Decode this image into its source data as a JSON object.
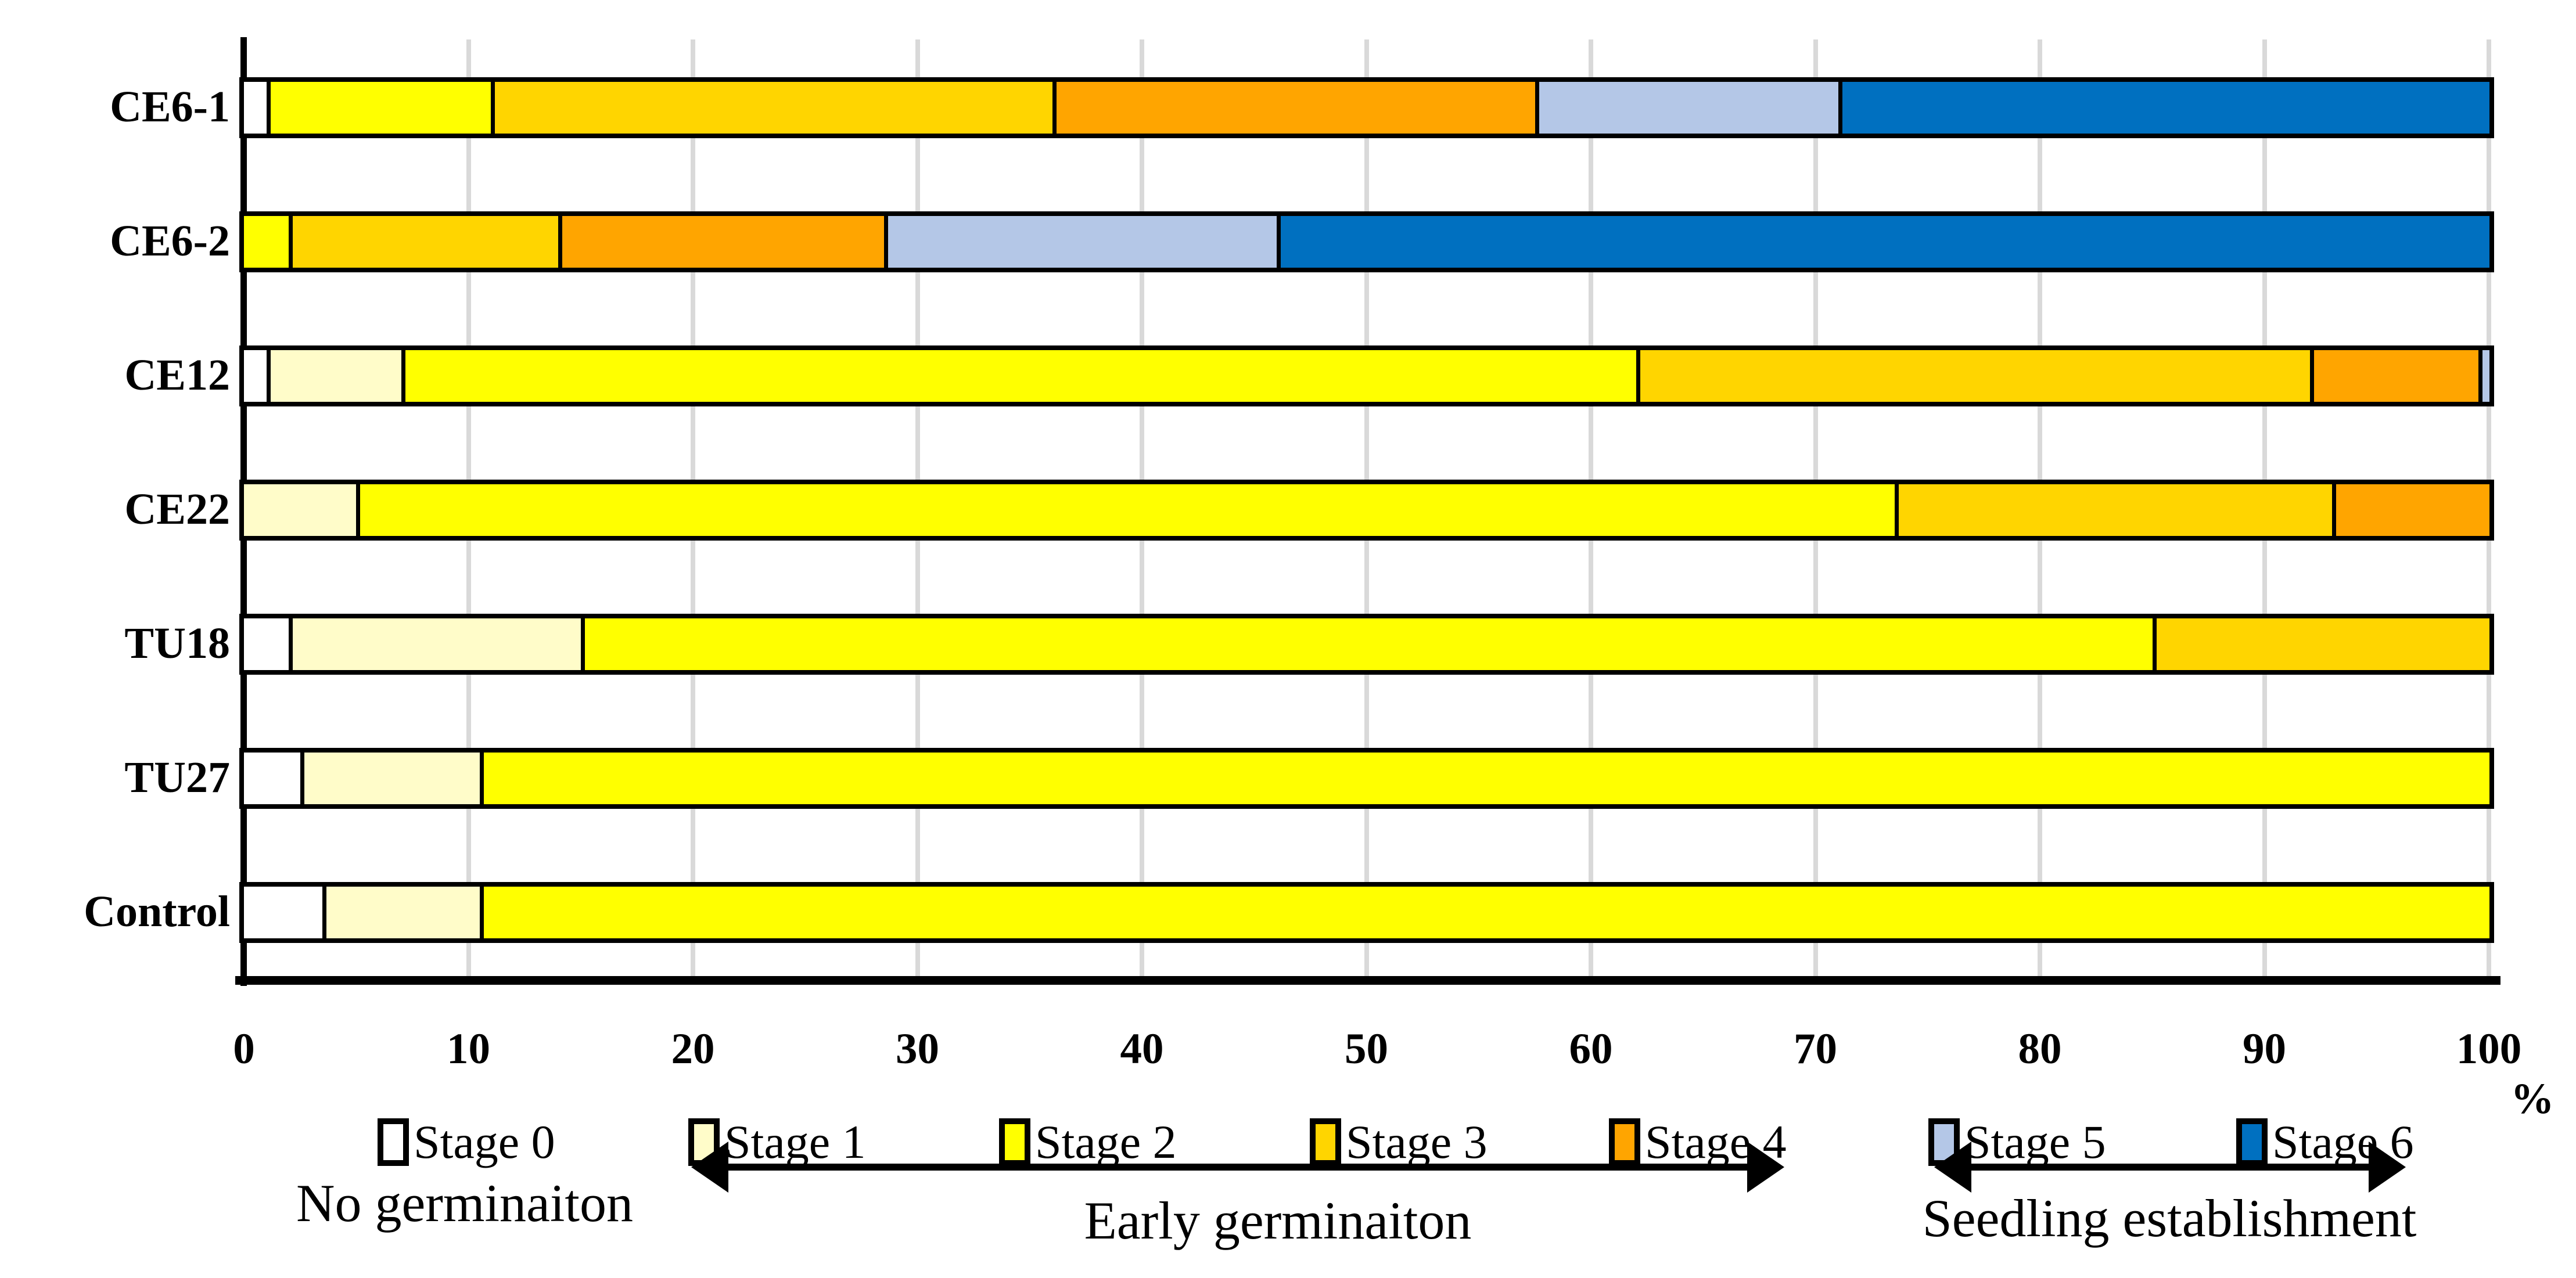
{
  "chart_data": {
    "type": "bar",
    "stacked": true,
    "orientation": "horizontal",
    "title": "",
    "categories": [
      "CE6-1",
      "CE6-2",
      "CE12",
      "CE22",
      "TU18",
      "TU27",
      "Control"
    ],
    "series": [
      {
        "name": "Stage 0",
        "color": "#FFFFFF",
        "values": [
          1,
          0,
          1,
          0,
          2,
          2.5,
          3.5
        ]
      },
      {
        "name": "Stage 1",
        "color": "#FFFCC9",
        "values": [
          0,
          0,
          6,
          5,
          13,
          8,
          7
        ]
      },
      {
        "name": "Stage 2",
        "color": "#FFFF00",
        "values": [
          10,
          2,
          55,
          68.5,
          70,
          89.5,
          89.5
        ]
      },
      {
        "name": "Stage 3",
        "color": "#FFD500",
        "values": [
          25,
          12,
          30,
          19.5,
          15,
          0,
          0
        ]
      },
      {
        "name": "Stage 4",
        "color": "#FFA500",
        "values": [
          21.5,
          14.5,
          7.5,
          7,
          0,
          0,
          0
        ]
      },
      {
        "name": "Stage 5",
        "color": "#B4C7E7",
        "values": [
          13.5,
          17.5,
          0.5,
          0,
          0,
          0,
          0
        ]
      },
      {
        "name": "Stage 6",
        "color": "#0070C0",
        "values": [
          29,
          54,
          0,
          0,
          0,
          0,
          0
        ]
      }
    ],
    "x_ticks": [
      0,
      10,
      20,
      30,
      40,
      50,
      60,
      70,
      80,
      90,
      100
    ],
    "xlim": [
      0,
      100
    ],
    "axis_unit_label": "%",
    "grid": true,
    "legend_position": "bottom",
    "gridline_color": "#D9D9D9",
    "bar_border_color": "#000000"
  },
  "annotations": {
    "no_germination": "No germinaiton",
    "early_germination": "Early germinaiton",
    "seedling_establishment": "Seedling establishment"
  }
}
